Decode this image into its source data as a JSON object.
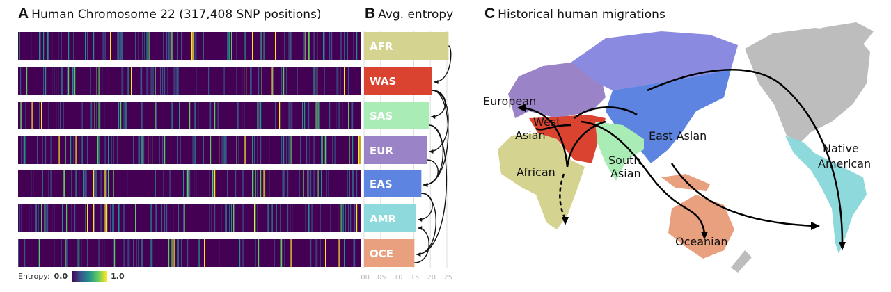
{
  "panel_a": {
    "letter": "A",
    "title": "Human Chromosome 22 (317,408 SNP positions)"
  },
  "panel_b": {
    "letter": "B",
    "title": "Avg. entropy"
  },
  "panel_c": {
    "letter": "C",
    "title": "Historical human migrations",
    "labels": {
      "european": "European",
      "west_asian_1": "West",
      "west_asian_2": "Asian",
      "african": "African",
      "south_asian_1": "South",
      "south_asian_2": "Asian",
      "east_asian": "East Asian",
      "native_american_1": "Native",
      "native_american_2": "American",
      "oceanian": "Oceanian"
    }
  },
  "legend": {
    "label": "Entropy:",
    "min": "0.0",
    "max": "1.0"
  },
  "colors": {
    "AFR": "#d4d38f",
    "WAS": "#d9432f",
    "SAS": "#a9ecb6",
    "EUR": "#9a83c6",
    "EAS": "#5c84e0",
    "AMR": "#8dd9dc",
    "OCE": "#e9a07f"
  },
  "chart_data": {
    "type": "bar",
    "title": "Avg. entropy",
    "categories": [
      "AFR",
      "WAS",
      "SAS",
      "EUR",
      "EAS",
      "AMR",
      "OCE"
    ],
    "values": [
      0.255,
      0.205,
      0.196,
      0.19,
      0.173,
      0.156,
      0.152
    ],
    "xlim": [
      0,
      0.25
    ],
    "xticks": [
      ".00",
      ".05",
      ".10",
      ".15",
      ".20",
      ".25"
    ],
    "grid": true,
    "arrows": [
      [
        "AFR",
        "WAS"
      ],
      [
        "WAS",
        "SAS"
      ],
      [
        "WAS",
        "EUR"
      ],
      [
        "WAS",
        "EAS"
      ],
      [
        "SAS",
        "EAS"
      ],
      [
        "SAS",
        "OCE"
      ],
      [
        "EUR",
        "EAS"
      ],
      [
        "EAS",
        "AMR"
      ],
      [
        "EAS",
        "OCE"
      ],
      [
        "OCE",
        "AMR"
      ]
    ]
  }
}
